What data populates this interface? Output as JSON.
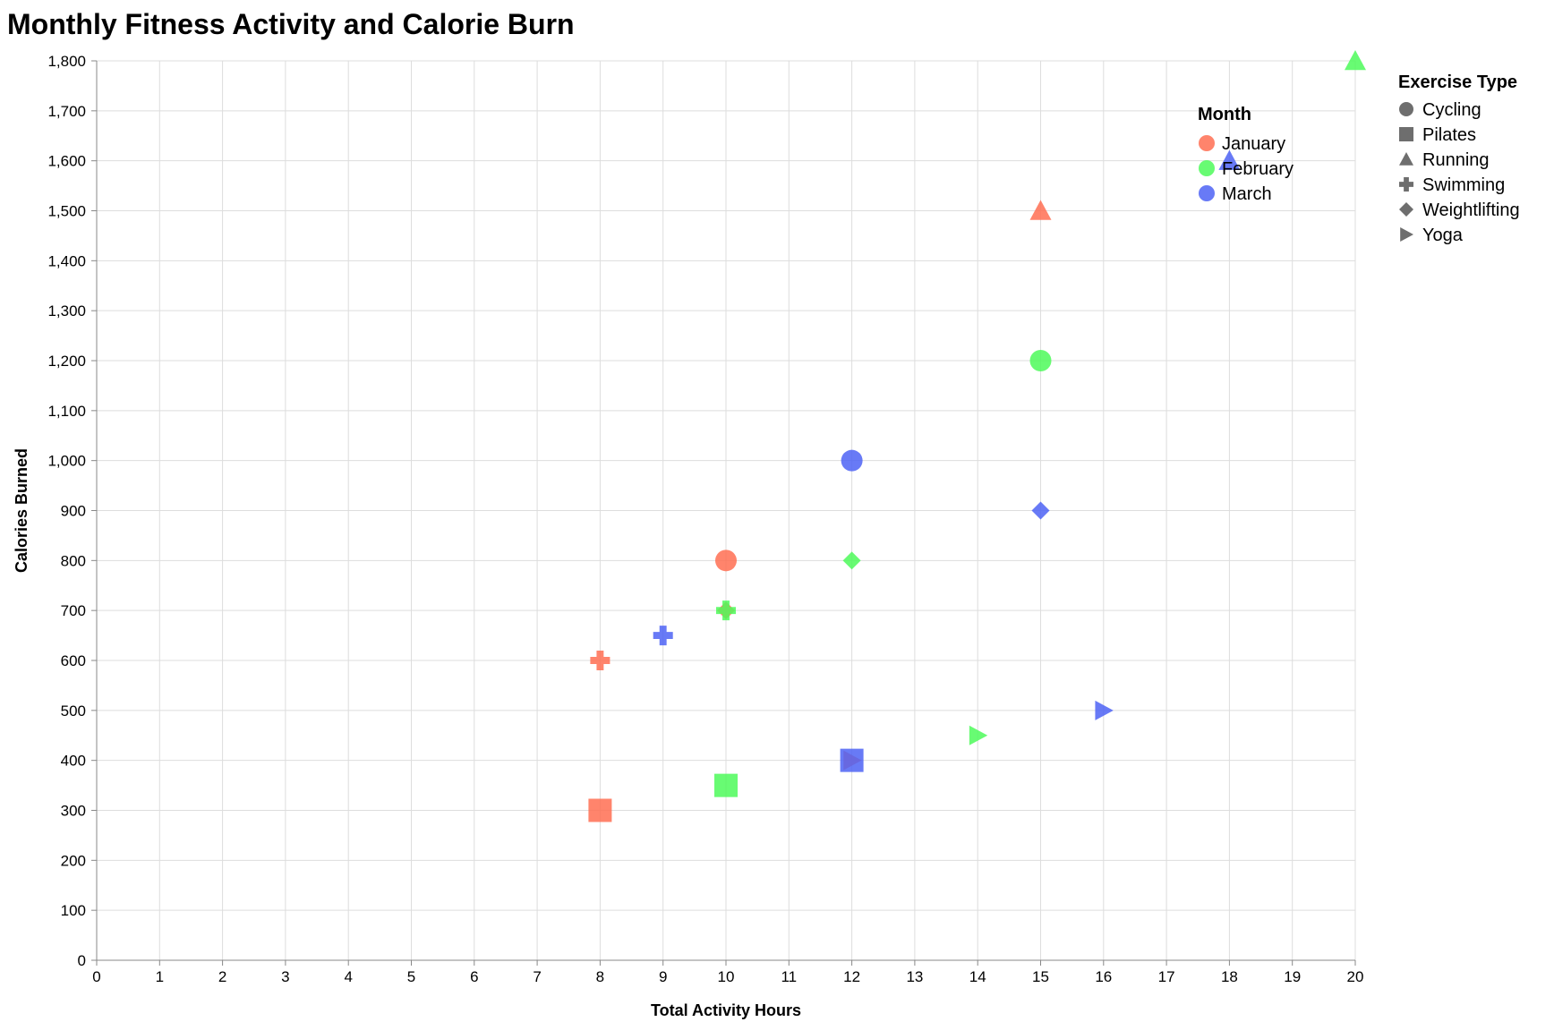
{
  "chart_data": {
    "type": "scatter",
    "title": "Monthly Fitness Activity and Calorie Burn",
    "xlabel": "Total Activity Hours",
    "ylabel": "Calories Burned",
    "xlim": [
      0,
      20
    ],
    "ylim": [
      0,
      1800
    ],
    "x_ticks": [
      0,
      1,
      2,
      3,
      4,
      5,
      6,
      7,
      8,
      9,
      10,
      11,
      12,
      13,
      14,
      15,
      16,
      17,
      18,
      19,
      20
    ],
    "y_ticks": [
      0,
      100,
      200,
      300,
      400,
      500,
      600,
      700,
      800,
      900,
      1000,
      1100,
      1200,
      1300,
      1400,
      1500,
      1600,
      1700,
      1800
    ],
    "grid": true,
    "color_legend": {
      "title": "Month",
      "placement": "top-right-inside",
      "entries": [
        {
          "label": "January",
          "color": "#ff6f52"
        },
        {
          "label": "February",
          "color": "#4dfa5a"
        },
        {
          "label": "March",
          "color": "#4d63f5"
        }
      ]
    },
    "shape_legend": {
      "title": "Exercise Type",
      "placement": "right",
      "entries": [
        {
          "label": "Cycling",
          "shape": "circle"
        },
        {
          "label": "Pilates",
          "shape": "square"
        },
        {
          "label": "Running",
          "shape": "triangle-up"
        },
        {
          "label": "Swimming",
          "shape": "cross"
        },
        {
          "label": "Weightlifting",
          "shape": "diamond"
        },
        {
          "label": "Yoga",
          "shape": "triangle-right"
        }
      ]
    },
    "points": [
      {
        "month": "January",
        "exercise": "Running",
        "x": 15,
        "y": 1500
      },
      {
        "month": "January",
        "exercise": "Cycling",
        "x": 10,
        "y": 800
      },
      {
        "month": "January",
        "exercise": "Swimming",
        "x": 8,
        "y": 600
      },
      {
        "month": "January",
        "exercise": "Weightlifting",
        "x": 10,
        "y": 700
      },
      {
        "month": "January",
        "exercise": "Yoga",
        "x": 12,
        "y": 400
      },
      {
        "month": "January",
        "exercise": "Pilates",
        "x": 8,
        "y": 300
      },
      {
        "month": "February",
        "exercise": "Running",
        "x": 20,
        "y": 1800
      },
      {
        "month": "February",
        "exercise": "Cycling",
        "x": 15,
        "y": 1200
      },
      {
        "month": "February",
        "exercise": "Swimming",
        "x": 10,
        "y": 700
      },
      {
        "month": "February",
        "exercise": "Weightlifting",
        "x": 12,
        "y": 800
      },
      {
        "month": "February",
        "exercise": "Yoga",
        "x": 14,
        "y": 450
      },
      {
        "month": "February",
        "exercise": "Pilates",
        "x": 10,
        "y": 350
      },
      {
        "month": "March",
        "exercise": "Running",
        "x": 18,
        "y": 1600
      },
      {
        "month": "March",
        "exercise": "Cycling",
        "x": 12,
        "y": 1000
      },
      {
        "month": "March",
        "exercise": "Swimming",
        "x": 9,
        "y": 650
      },
      {
        "month": "March",
        "exercise": "Weightlifting",
        "x": 15,
        "y": 900
      },
      {
        "month": "March",
        "exercise": "Yoga",
        "x": 16,
        "y": 500
      },
      {
        "month": "March",
        "exercise": "Pilates",
        "x": 12,
        "y": 400
      }
    ]
  }
}
